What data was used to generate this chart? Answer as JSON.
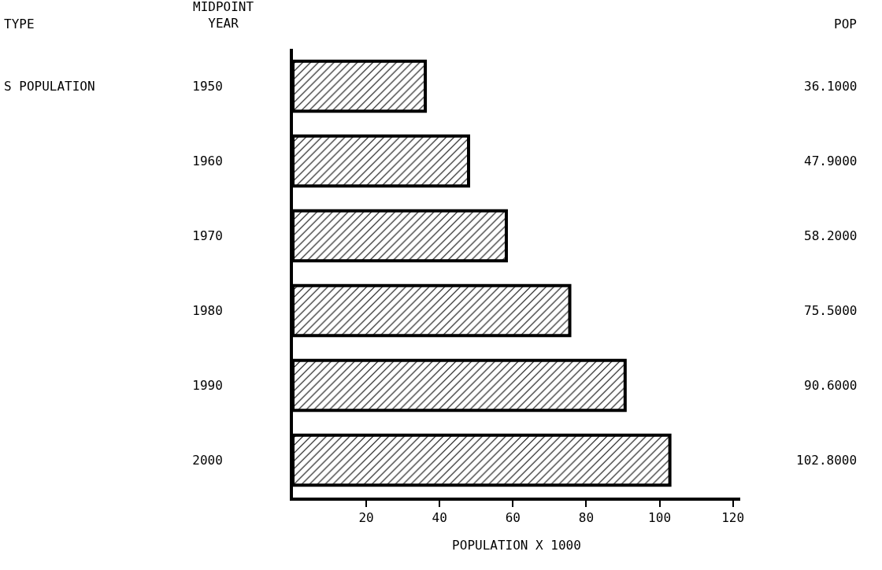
{
  "chart_data": {
    "type": "bar",
    "orientation": "horizontal",
    "xlabel": "POPULATION X 1000",
    "ylabel": "MIDPOINT YEAR",
    "categories": [
      "1950",
      "1960",
      "1970",
      "1980",
      "1990",
      "2000"
    ],
    "values": [
      36.1,
      47.9,
      58.2,
      75.5,
      90.6,
      102.8
    ],
    "value_labels": [
      "36.1000",
      "47.9000",
      "58.2000",
      "75.5000",
      "90.6000",
      "102.8000"
    ],
    "color": "#000000",
    "xlim": [
      0,
      122
    ],
    "xticks": [
      20,
      40,
      60,
      80,
      100,
      120
    ],
    "annotations": [
      "TYPE",
      "S POPULATION",
      "POP"
    ],
    "grid": false,
    "legend": false
  }
}
